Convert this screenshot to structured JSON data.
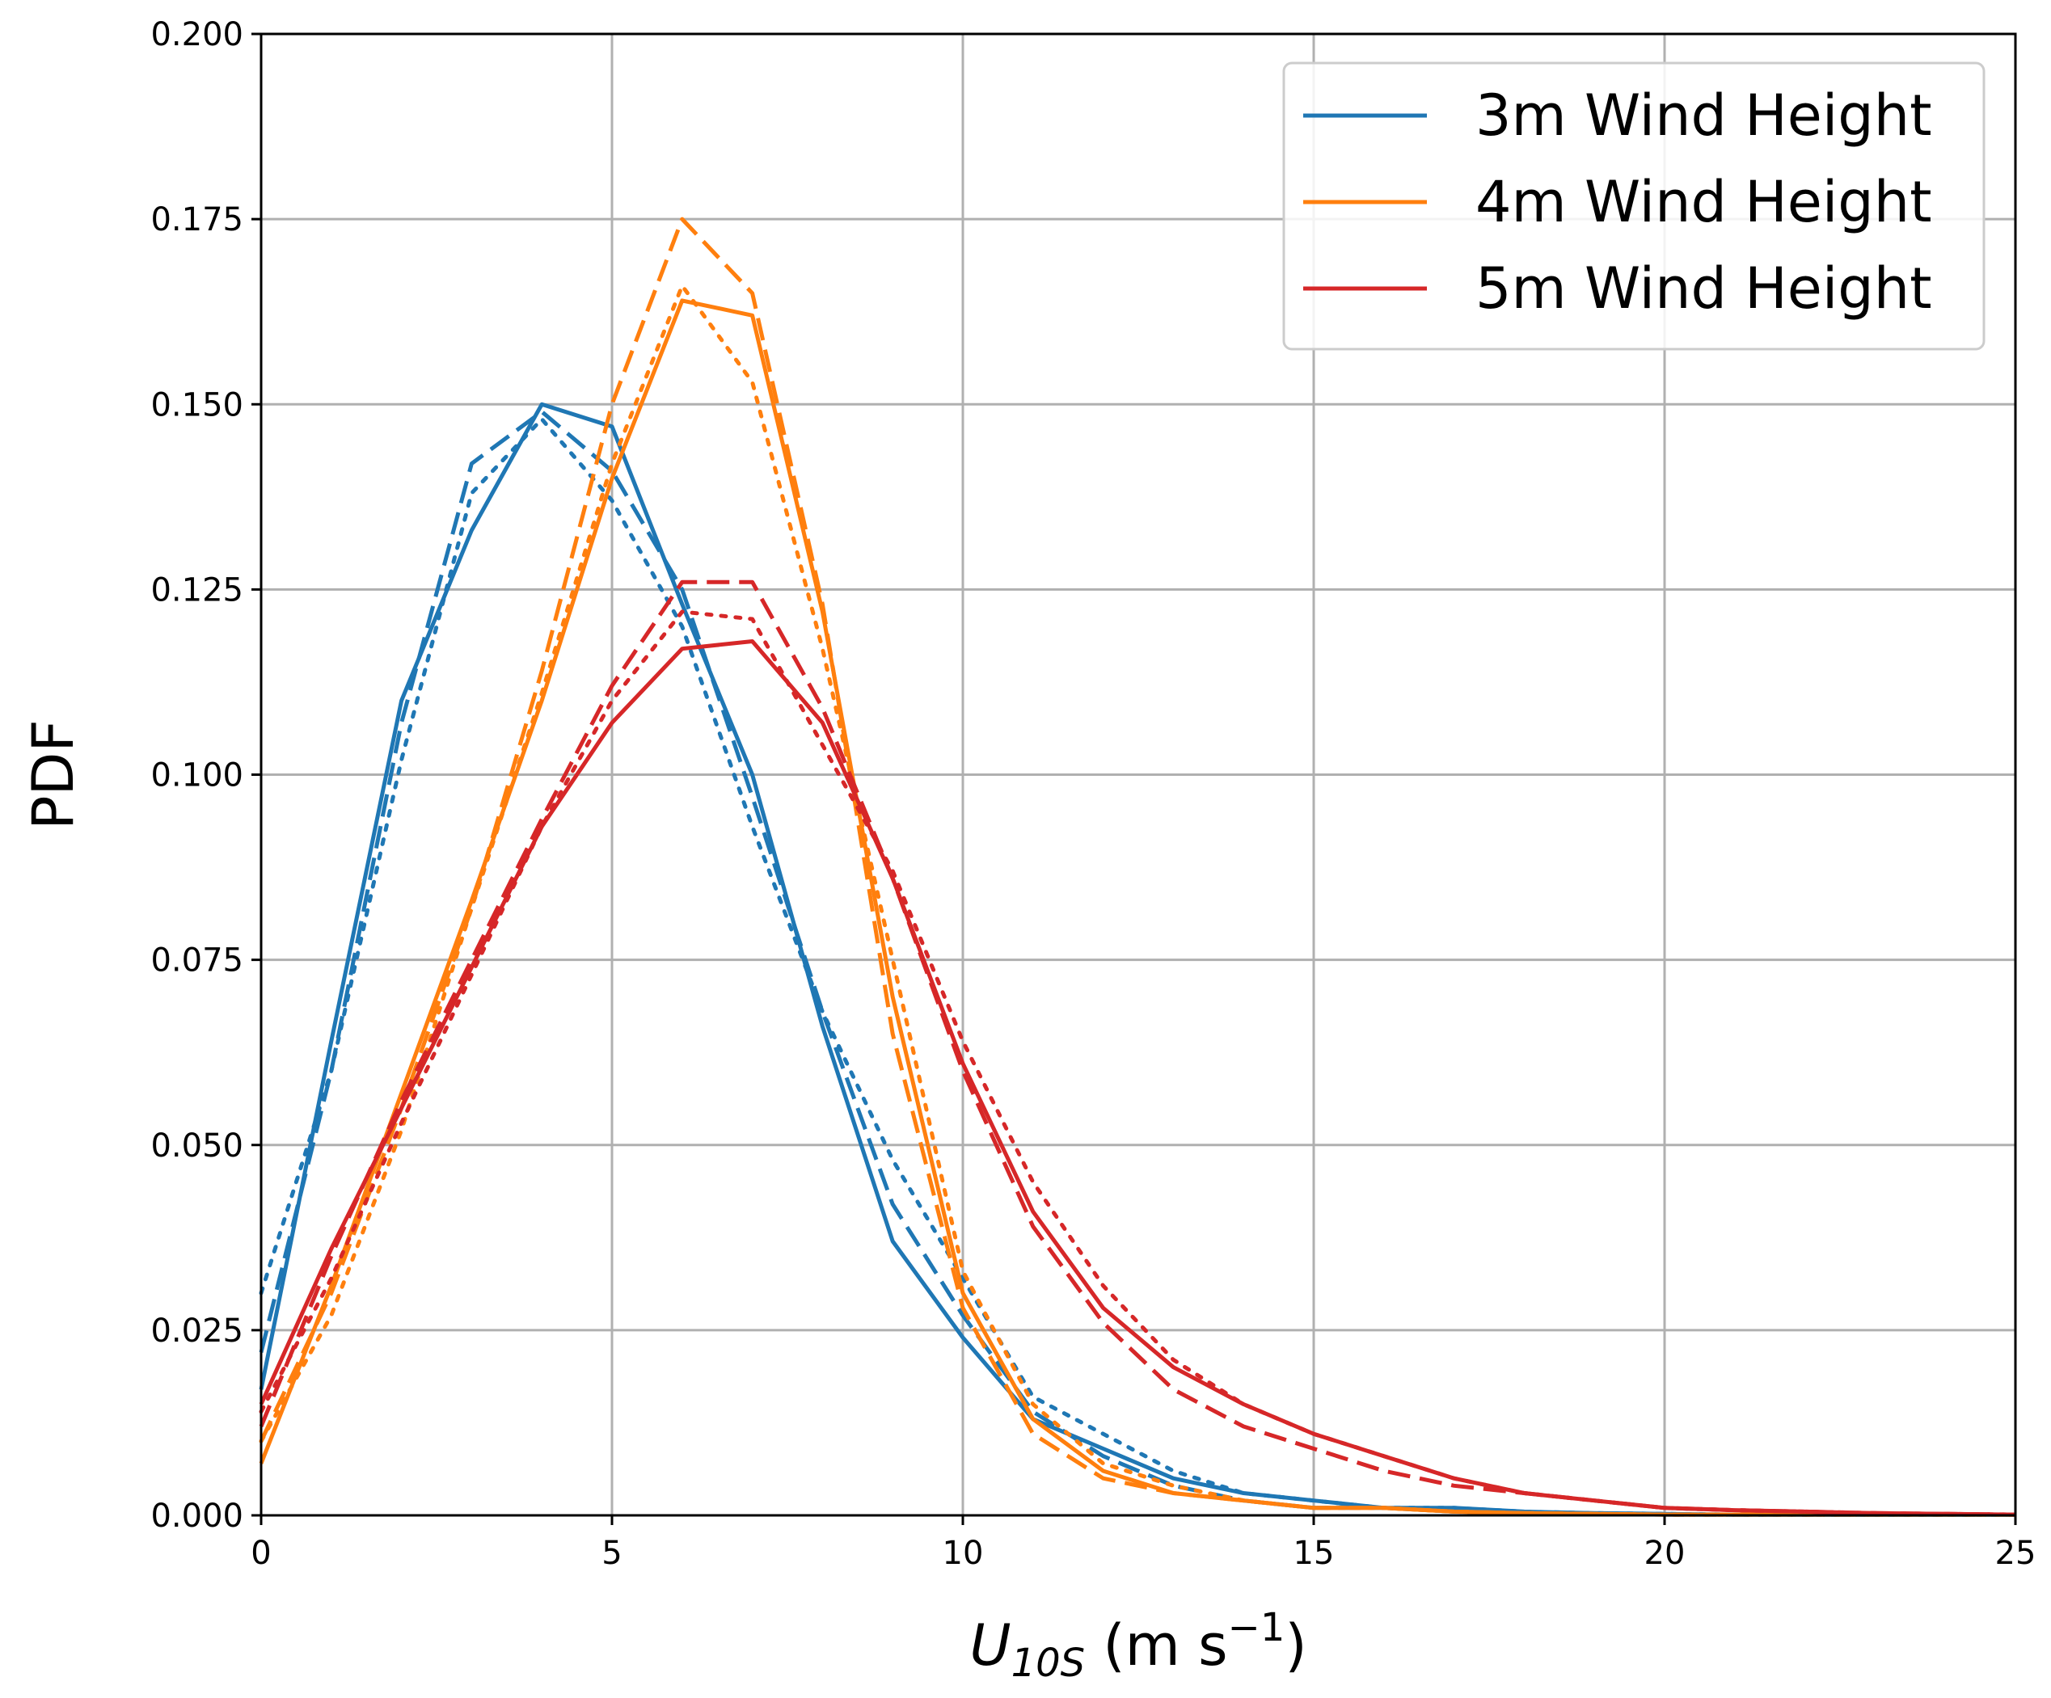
{
  "chart_data": {
    "type": "line",
    "title": "",
    "xlabel": "U10S (m s-1)",
    "xlabel_parts": {
      "main": "U",
      "sub": "10S",
      "units_open": " (m s",
      "sup": "−1",
      "units_close": ")"
    },
    "ylabel": "PDF",
    "xlim": [
      0,
      25
    ],
    "ylim": [
      0,
      0.2
    ],
    "x_ticks": [
      "0",
      "5",
      "10",
      "15",
      "20",
      "25"
    ],
    "y_ticks": [
      "0.000",
      "0.025",
      "0.050",
      "0.075",
      "0.100",
      "0.125",
      "0.150",
      "0.175",
      "0.200"
    ],
    "x_tick_values": [
      0,
      5,
      10,
      15,
      20,
      25
    ],
    "y_tick_values": [
      0,
      0.025,
      0.05,
      0.075,
      0.1,
      0.125,
      0.15,
      0.175,
      0.2
    ],
    "grid": true,
    "legend_position": "top-right",
    "legend": [
      {
        "label": "3m Wind Height",
        "color": "#1f77b4"
      },
      {
        "label": "4m Wind Height",
        "color": "#ff7f0e"
      },
      {
        "label": "5m Wind Height",
        "color": "#d62728"
      }
    ],
    "x": [
      0,
      1,
      2,
      3,
      4,
      5,
      6,
      7,
      8,
      9,
      10,
      11,
      12,
      13,
      14,
      15,
      16,
      17,
      18,
      19,
      20,
      21,
      22,
      23,
      24,
      25
    ],
    "series": [
      {
        "name": "3m Wind Height (solid)",
        "color": "#1f77b4",
        "dash": "solid",
        "values": [
          0.017,
          0.064,
          0.11,
          0.133,
          0.15,
          0.147,
          0.123,
          0.1,
          0.066,
          0.037,
          0.024,
          0.013,
          0.009,
          0.005,
          0.003,
          0.002,
          0.001,
          0.001,
          0.0005,
          0.0003,
          0.0002,
          0.0001,
          0.0001,
          0.0001,
          0.0001,
          0.0001
        ]
      },
      {
        "name": "3m Wind Height (dashed)",
        "color": "#1f77b4",
        "dash": "dashed",
        "values": [
          0.022,
          0.06,
          0.107,
          0.142,
          0.149,
          0.141,
          0.125,
          0.097,
          0.068,
          0.042,
          0.027,
          0.014,
          0.008,
          0.004,
          0.002,
          0.001,
          0.001,
          0.0005,
          0.0003,
          0.0002,
          0.0001,
          0.0001,
          0.0001,
          0.0001,
          0.0001,
          0.0001
        ]
      },
      {
        "name": "3m Wind Height (dotted)",
        "color": "#1f77b4",
        "dash": "dotted",
        "values": [
          0.03,
          0.06,
          0.102,
          0.138,
          0.148,
          0.137,
          0.12,
          0.093,
          0.068,
          0.048,
          0.032,
          0.016,
          0.011,
          0.006,
          0.003,
          0.002,
          0.001,
          0.001,
          0.0005,
          0.0003,
          0.0002,
          0.0001,
          0.0001,
          0.0001,
          0.0001,
          0.0001
        ]
      },
      {
        "name": "4m Wind Height (solid)",
        "color": "#ff7f0e",
        "dash": "solid",
        "values": [
          0.007,
          0.031,
          0.057,
          0.083,
          0.11,
          0.14,
          0.164,
          0.162,
          0.122,
          0.07,
          0.03,
          0.013,
          0.006,
          0.003,
          0.002,
          0.001,
          0.001,
          0.0005,
          0.0003,
          0.0002,
          0.0001,
          0.0001,
          0.0001,
          0.0001,
          0.0001,
          0.0001
        ]
      },
      {
        "name": "4m Wind Height (dashed)",
        "color": "#ff7f0e",
        "dash": "dashed",
        "values": [
          0.01,
          0.03,
          0.055,
          0.082,
          0.114,
          0.15,
          0.175,
          0.165,
          0.123,
          0.065,
          0.028,
          0.011,
          0.005,
          0.003,
          0.002,
          0.001,
          0.001,
          0.0005,
          0.0003,
          0.0002,
          0.0001,
          0.0001,
          0.0001,
          0.0001,
          0.0001,
          0.0001
        ]
      },
      {
        "name": "4m Wind Height (dotted)",
        "color": "#ff7f0e",
        "dash": "dotted",
        "values": [
          0.01,
          0.027,
          0.052,
          0.082,
          0.111,
          0.142,
          0.166,
          0.153,
          0.117,
          0.075,
          0.033,
          0.015,
          0.007,
          0.004,
          0.002,
          0.001,
          0.001,
          0.0005,
          0.0003,
          0.0002,
          0.0001,
          0.0001,
          0.0001,
          0.0001,
          0.0001,
          0.0001
        ]
      },
      {
        "name": "5m Wind Height (solid)",
        "color": "#d62728",
        "dash": "solid",
        "values": [
          0.015,
          0.036,
          0.055,
          0.074,
          0.093,
          0.107,
          0.117,
          0.118,
          0.107,
          0.086,
          0.061,
          0.041,
          0.028,
          0.02,
          0.015,
          0.011,
          0.008,
          0.005,
          0.003,
          0.002,
          0.001,
          0.0007,
          0.0005,
          0.0003,
          0.0002,
          0.0001
        ]
      },
      {
        "name": "5m Wind Height (dashed)",
        "color": "#d62728",
        "dash": "dashed",
        "values": [
          0.012,
          0.035,
          0.056,
          0.075,
          0.094,
          0.112,
          0.126,
          0.126,
          0.109,
          0.086,
          0.06,
          0.039,
          0.026,
          0.017,
          0.012,
          0.009,
          0.006,
          0.004,
          0.003,
          0.002,
          0.001,
          0.0007,
          0.0005,
          0.0003,
          0.0002,
          0.0001
        ]
      },
      {
        "name": "5m Wind Height (dotted)",
        "color": "#d62728",
        "dash": "dotted",
        "values": [
          0.014,
          0.032,
          0.053,
          0.073,
          0.093,
          0.11,
          0.122,
          0.121,
          0.104,
          0.087,
          0.064,
          0.045,
          0.031,
          0.021,
          0.015,
          0.011,
          0.008,
          0.005,
          0.003,
          0.002,
          0.001,
          0.0007,
          0.0005,
          0.0003,
          0.0002,
          0.0001
        ]
      }
    ]
  }
}
